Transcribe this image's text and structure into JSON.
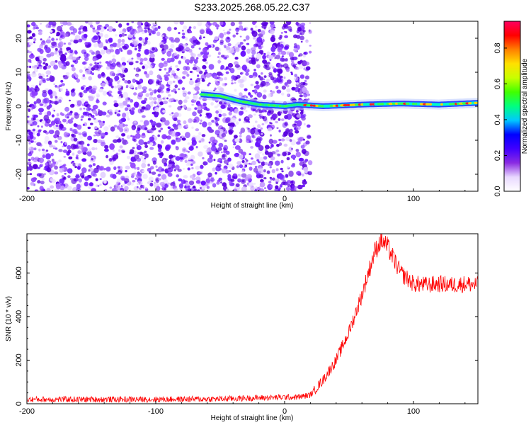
{
  "chart_data": [
    {
      "type": "heatmap",
      "title": "S233.2025.268.05.22.C37",
      "xlabel": "Height of straight line (km)",
      "ylabel": "Frequency (Hz)",
      "xlim": [
        -200,
        150
      ],
      "ylim": [
        -25,
        25
      ],
      "xticks": [
        -200,
        -100,
        0,
        100
      ],
      "yticks": [
        -20,
        -10,
        0,
        10,
        20
      ],
      "colorbar": {
        "label": "Normalized spectral amplitude",
        "range": [
          0.0,
          0.95
        ],
        "ticks": [
          0.0,
          0.2,
          0.4,
          0.6,
          0.8
        ],
        "colormap": [
          "#ffffff",
          "#e8d8ff",
          "#8a2be2",
          "#4000ff",
          "#0000ff",
          "#00c8ff",
          "#00ff80",
          "#40ff00",
          "#c8ff00",
          "#ffe000",
          "#ff8000",
          "#ff0000",
          "#ff0060"
        ]
      },
      "noise_region_x": [
        -200,
        20
      ],
      "signal_track": [
        {
          "x": -65,
          "y": 3.5
        },
        {
          "x": -50,
          "y": 3.0
        },
        {
          "x": -35,
          "y": 1.5
        },
        {
          "x": -20,
          "y": 0.5
        },
        {
          "x": 0,
          "y": 0.0
        },
        {
          "x": 10,
          "y": 0.5
        },
        {
          "x": 30,
          "y": 0.0
        },
        {
          "x": 60,
          "y": 0.5
        },
        {
          "x": 90,
          "y": 0.8
        },
        {
          "x": 120,
          "y": 0.5
        },
        {
          "x": 150,
          "y": 1.0
        }
      ]
    },
    {
      "type": "line",
      "xlabel": "Height of straight line (km)",
      "ylabel": "SNR (10 * v/v)",
      "xlim": [
        -200,
        150
      ],
      "ylim": [
        0,
        780
      ],
      "xticks": [
        -200,
        -100,
        0,
        100
      ],
      "yticks": [
        0,
        200,
        400,
        600
      ],
      "color": "#ff0000",
      "series": [
        {
          "name": "SNR",
          "x": [
            -200,
            -150,
            -100,
            -50,
            0,
            10,
            20,
            30,
            40,
            50,
            60,
            70,
            75,
            80,
            90,
            100,
            110,
            120,
            130,
            140,
            150
          ],
          "y": [
            20,
            20,
            20,
            22,
            30,
            30,
            40,
            110,
            200,
            330,
            500,
            700,
            750,
            720,
            600,
            550,
            545,
            550,
            545,
            550,
            545
          ]
        }
      ],
      "noise_amplitude": 25
    }
  ]
}
